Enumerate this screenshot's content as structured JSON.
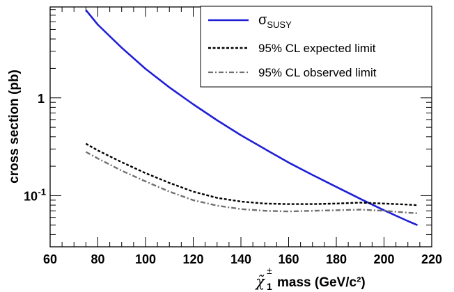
{
  "chart_data": {
    "type": "line",
    "xlabel": "mass (GeV/c²)",
    "xlabel_symbol": "χ̃",
    "xlabel_sub": "1",
    "xlabel_sup": "±",
    "ylabel": "cross section (pb)",
    "xlim": [
      60,
      220
    ],
    "ylim": [
      0.03,
      8.5
    ],
    "yscale": "log",
    "grid": false,
    "legend_position": "top-right",
    "x_ticks": [
      "60",
      "80",
      "100",
      "120",
      "140",
      "160",
      "180",
      "200",
      "220"
    ],
    "y_ticks": [
      {
        "value": 1,
        "base": "1",
        "exp": ""
      },
      {
        "value": 0.1,
        "base": "10",
        "exp": "-1"
      }
    ],
    "series": [
      {
        "name": "σ",
        "name_sub": "SUSY",
        "color": "#1f1fd6",
        "style": "solid",
        "x": [
          75,
          80,
          90,
          100,
          110,
          120,
          130,
          140,
          150,
          160,
          170,
          180,
          190,
          200,
          210,
          214
        ],
        "y": [
          7.9,
          5.6,
          3.25,
          1.98,
          1.28,
          0.86,
          0.59,
          0.415,
          0.3,
          0.218,
          0.163,
          0.123,
          0.093,
          0.071,
          0.055,
          0.05
        ]
      },
      {
        "name": "95% CL expected limit",
        "color": "#000000",
        "style": "dashed",
        "x": [
          75,
          80,
          90,
          100,
          110,
          120,
          130,
          140,
          150,
          160,
          170,
          180,
          190,
          200,
          210,
          214
        ],
        "y": [
          0.34,
          0.29,
          0.22,
          0.17,
          0.135,
          0.11,
          0.095,
          0.087,
          0.083,
          0.082,
          0.082,
          0.083,
          0.085,
          0.083,
          0.081,
          0.08
        ]
      },
      {
        "name": "95% CL observed limit",
        "color": "#707070",
        "style": "dashdot",
        "x": [
          75,
          80,
          90,
          100,
          110,
          120,
          130,
          140,
          150,
          160,
          170,
          180,
          190,
          200,
          210,
          214
        ],
        "y": [
          0.28,
          0.24,
          0.18,
          0.14,
          0.11,
          0.09,
          0.079,
          0.073,
          0.07,
          0.069,
          0.07,
          0.071,
          0.072,
          0.07,
          0.067,
          0.066
        ]
      }
    ]
  }
}
